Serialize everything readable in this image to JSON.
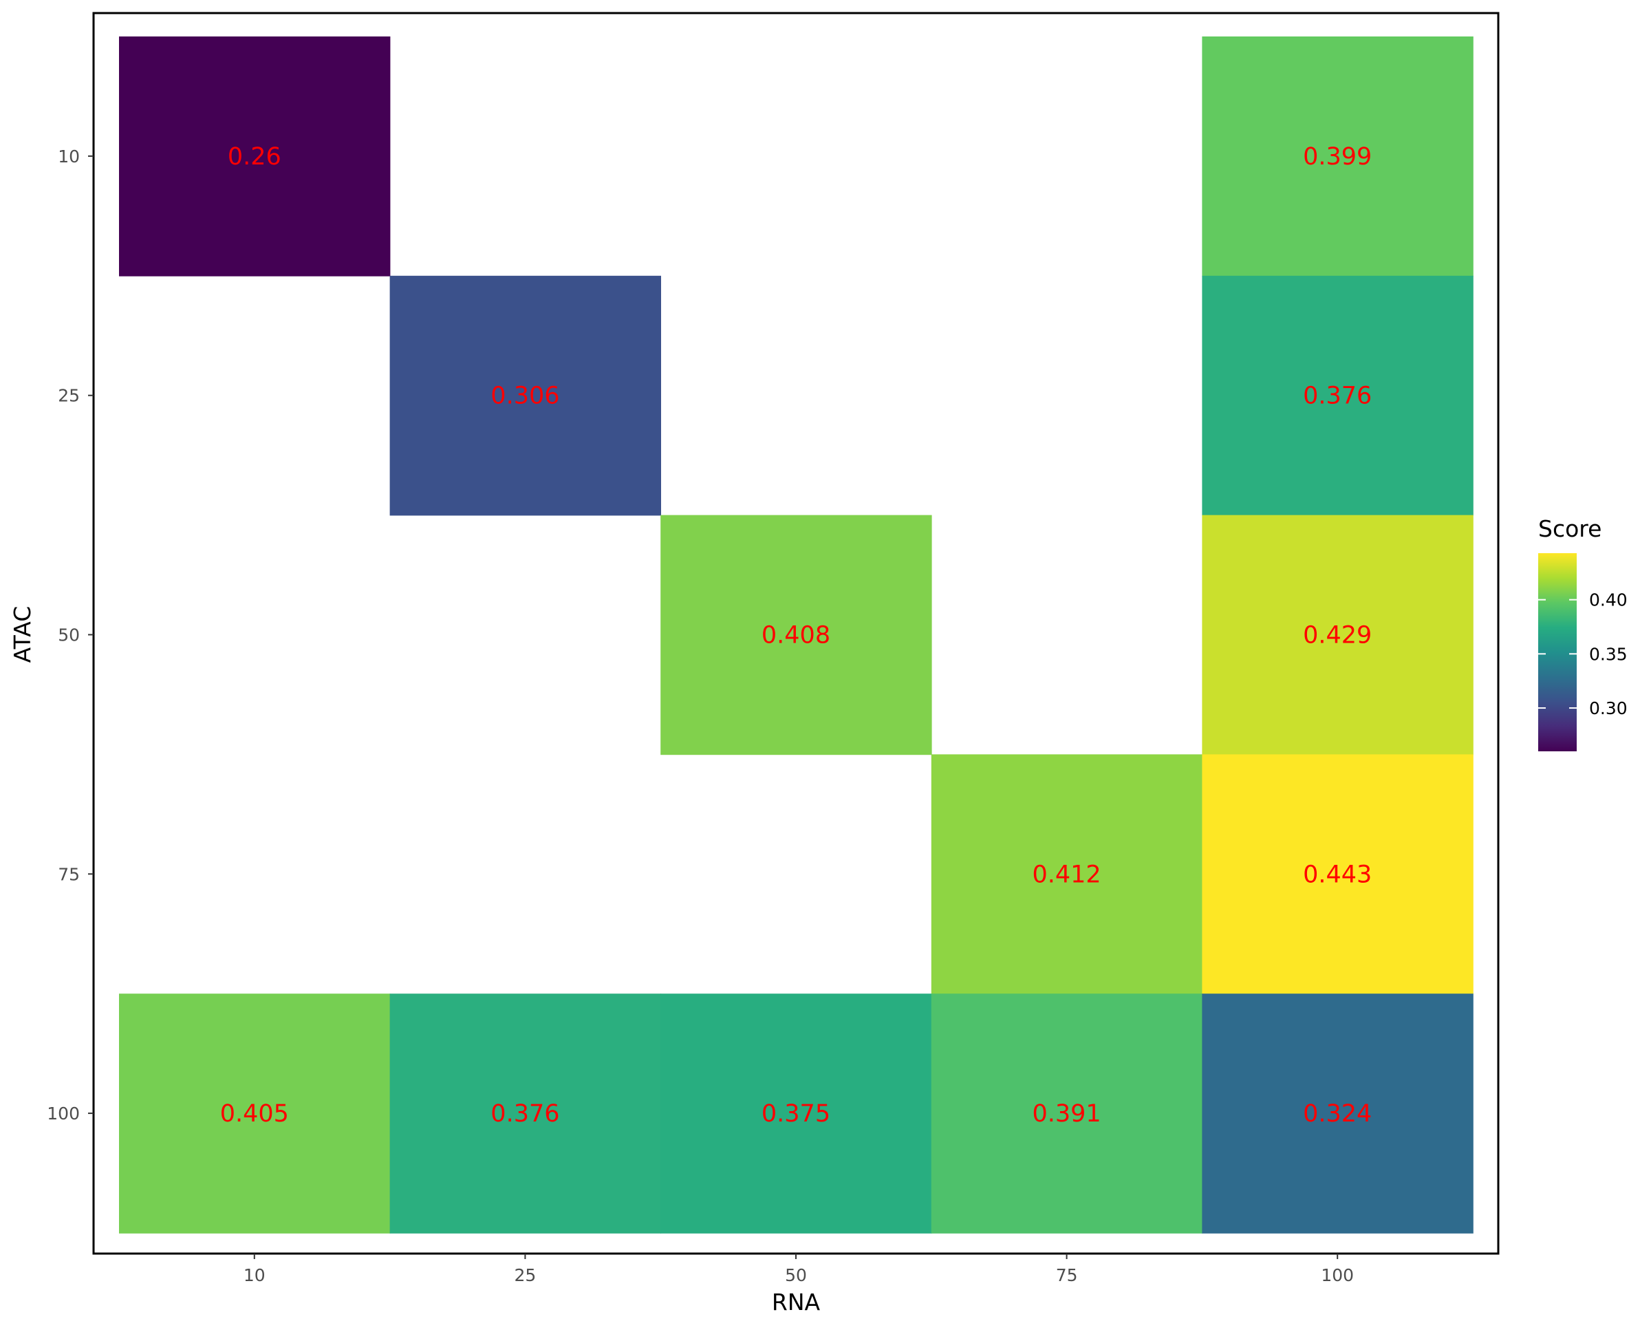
{
  "chart_data": {
    "type": "heatmap",
    "x_categories": [
      "10",
      "25",
      "50",
      "75",
      "100"
    ],
    "y_categories": [
      "10",
      "25",
      "50",
      "75",
      "100"
    ],
    "cells": [
      {
        "x": "10",
        "y": "10",
        "value": 0.26,
        "label": "0.26"
      },
      {
        "x": "100",
        "y": "10",
        "value": 0.399,
        "label": "0.399"
      },
      {
        "x": "25",
        "y": "25",
        "value": 0.306,
        "label": "0.306"
      },
      {
        "x": "100",
        "y": "25",
        "value": 0.376,
        "label": "0.376"
      },
      {
        "x": "50",
        "y": "50",
        "value": 0.408,
        "label": "0.408"
      },
      {
        "x": "100",
        "y": "50",
        "value": 0.429,
        "label": "0.429"
      },
      {
        "x": "75",
        "y": "75",
        "value": 0.412,
        "label": "0.412"
      },
      {
        "x": "100",
        "y": "75",
        "value": 0.443,
        "label": "0.443"
      },
      {
        "x": "10",
        "y": "100",
        "value": 0.405,
        "label": "0.405"
      },
      {
        "x": "25",
        "y": "100",
        "value": 0.376,
        "label": "0.376"
      },
      {
        "x": "50",
        "y": "100",
        "value": 0.375,
        "label": "0.375"
      },
      {
        "x": "75",
        "y": "100",
        "value": 0.391,
        "label": "0.391"
      },
      {
        "x": "100",
        "y": "100",
        "value": 0.324,
        "label": "0.324"
      }
    ],
    "xlabel": "RNA",
    "ylabel": "ATAC",
    "legend": {
      "title": "Score",
      "position": "right",
      "range": [
        0.26,
        0.443
      ],
      "ticks": [
        0.3,
        0.35,
        0.4
      ],
      "tick_labels": [
        "0.30",
        "0.35",
        "0.40"
      ]
    },
    "colormap": "viridis",
    "label_color": "#ff0000",
    "grid": false
  }
}
